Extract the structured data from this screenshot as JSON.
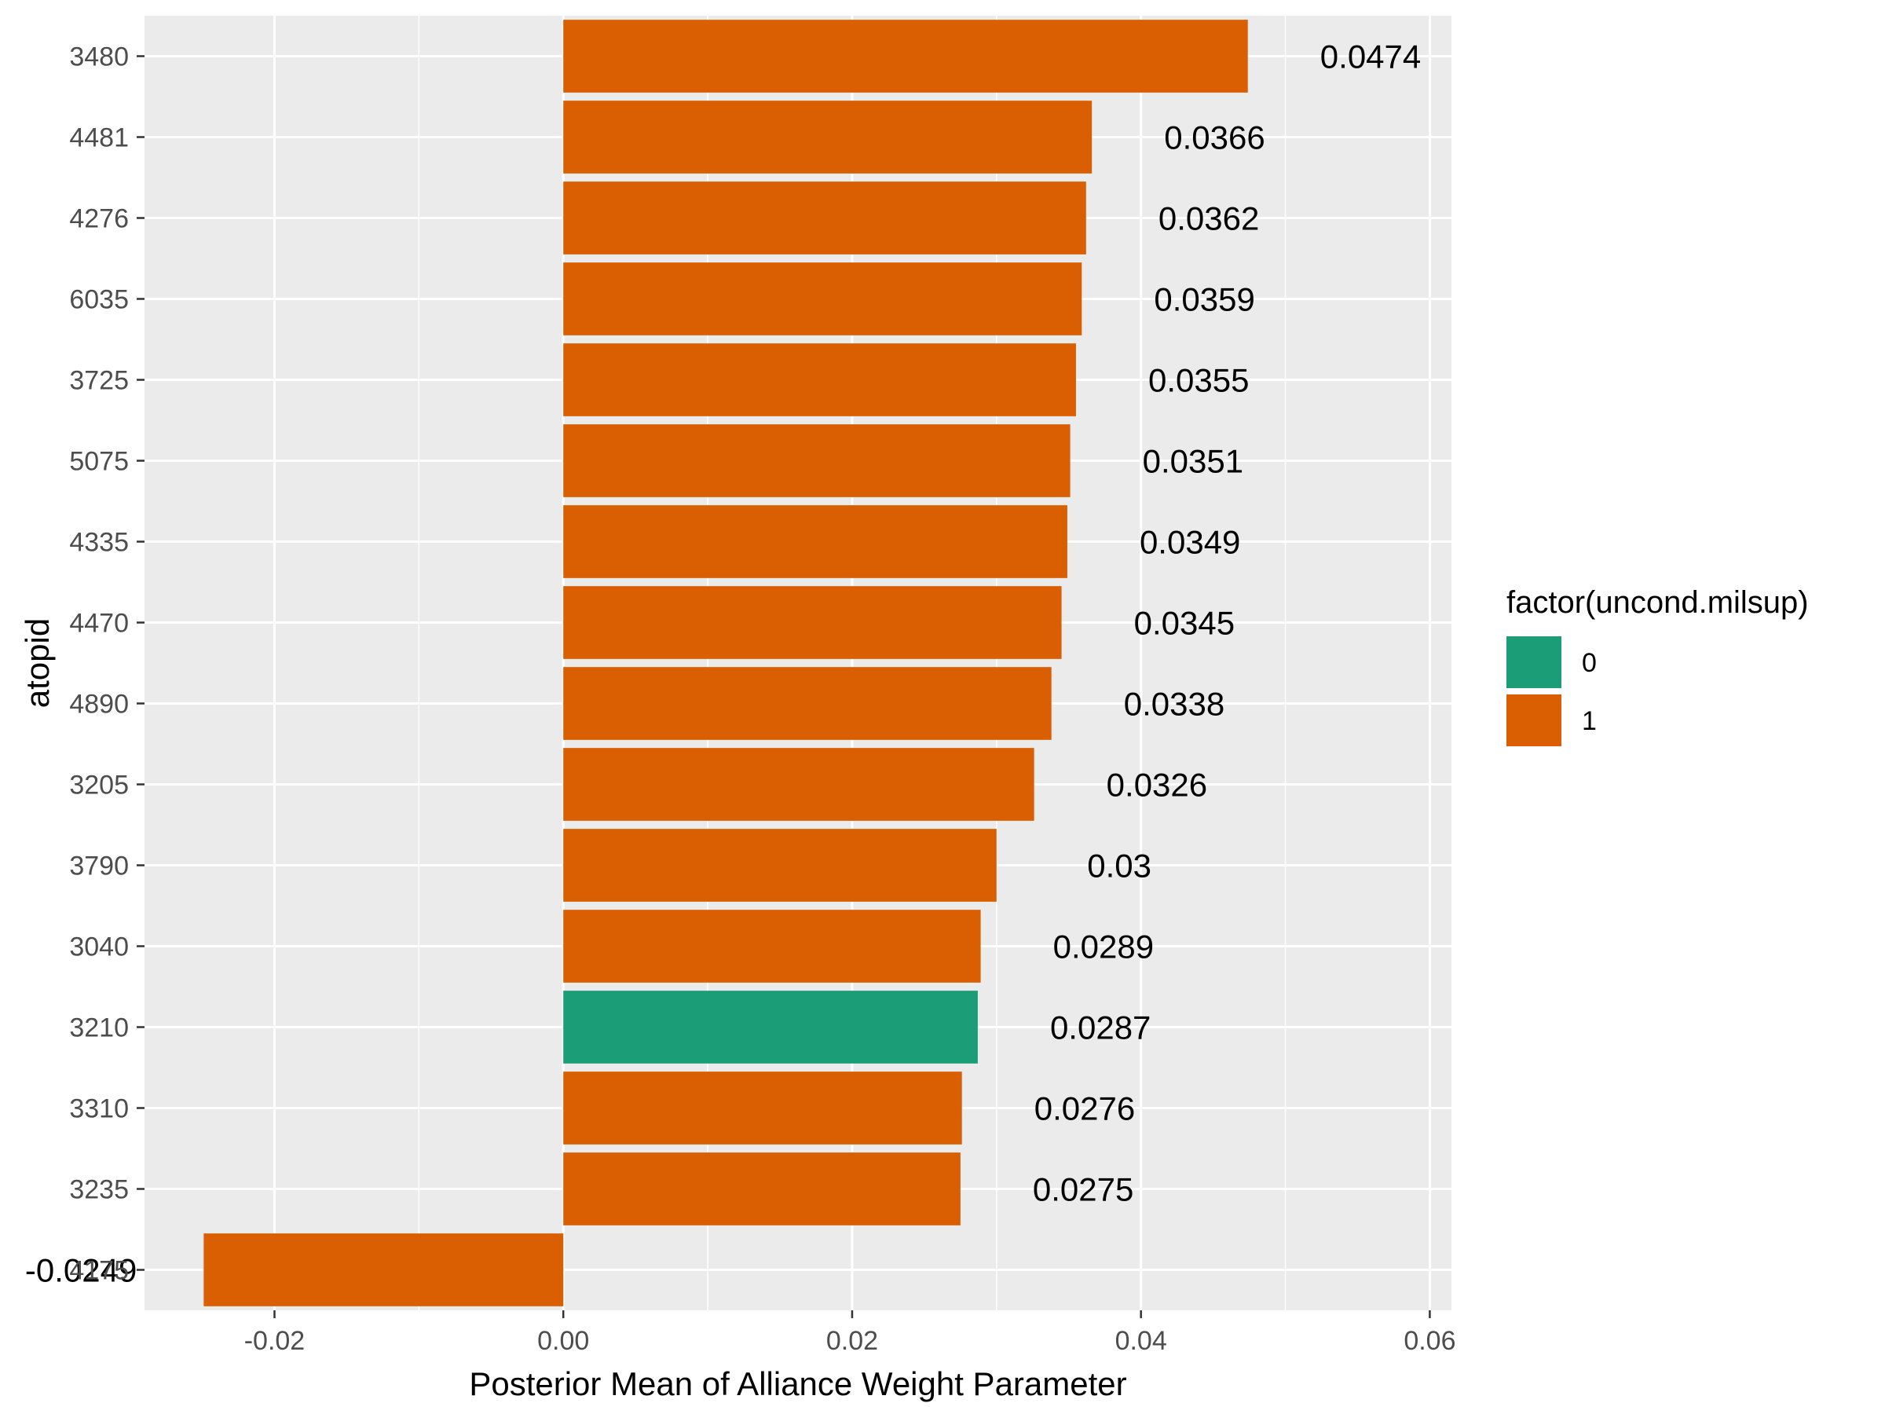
{
  "chart_data": {
    "type": "bar",
    "orientation": "horizontal",
    "xlabel": "Posterior Mean of Alliance Weight Parameter",
    "ylabel": "atopid",
    "xlim": [
      -0.029,
      0.0615
    ],
    "x_ticks": [
      -0.02,
      0.0,
      0.02,
      0.04,
      0.06
    ],
    "x_tick_labels": [
      "-0.02",
      "0.00",
      "0.02",
      "0.04",
      "0.06"
    ],
    "grid": true,
    "legend": {
      "title": "factor(uncond.milsup)",
      "placement": "right",
      "entries": [
        {
          "label": "0",
          "color": "#1B9E77"
        },
        {
          "label": "1",
          "color": "#D95F02"
        }
      ]
    },
    "categories": [
      "3480",
      "4481",
      "4276",
      "6035",
      "3725",
      "5075",
      "4335",
      "4470",
      "4890",
      "3205",
      "3790",
      "3040",
      "3210",
      "3310",
      "3235",
      "4175"
    ],
    "values": [
      0.0474,
      0.0366,
      0.0362,
      0.0359,
      0.0355,
      0.0351,
      0.0349,
      0.0345,
      0.0338,
      0.0326,
      0.03,
      0.0289,
      0.0287,
      0.0276,
      0.0275,
      -0.0249
    ],
    "value_labels": [
      "0.0474",
      "0.0366",
      "0.0362",
      "0.0359",
      "0.0355",
      "0.0351",
      "0.0349",
      "0.0345",
      "0.0338",
      "0.0326",
      "0.03",
      "0.0289",
      "0.0287",
      "0.0276",
      "0.0275",
      "-0.0249"
    ],
    "groups": [
      "1",
      "1",
      "1",
      "1",
      "1",
      "1",
      "1",
      "1",
      "1",
      "1",
      "1",
      "1",
      "0",
      "1",
      "1",
      "1"
    ]
  },
  "colors": {
    "panel_background": "#EBEBEB",
    "grid_major": "#FFFFFF",
    "group_0": "#1B9E77",
    "group_1": "#D95F02"
  }
}
